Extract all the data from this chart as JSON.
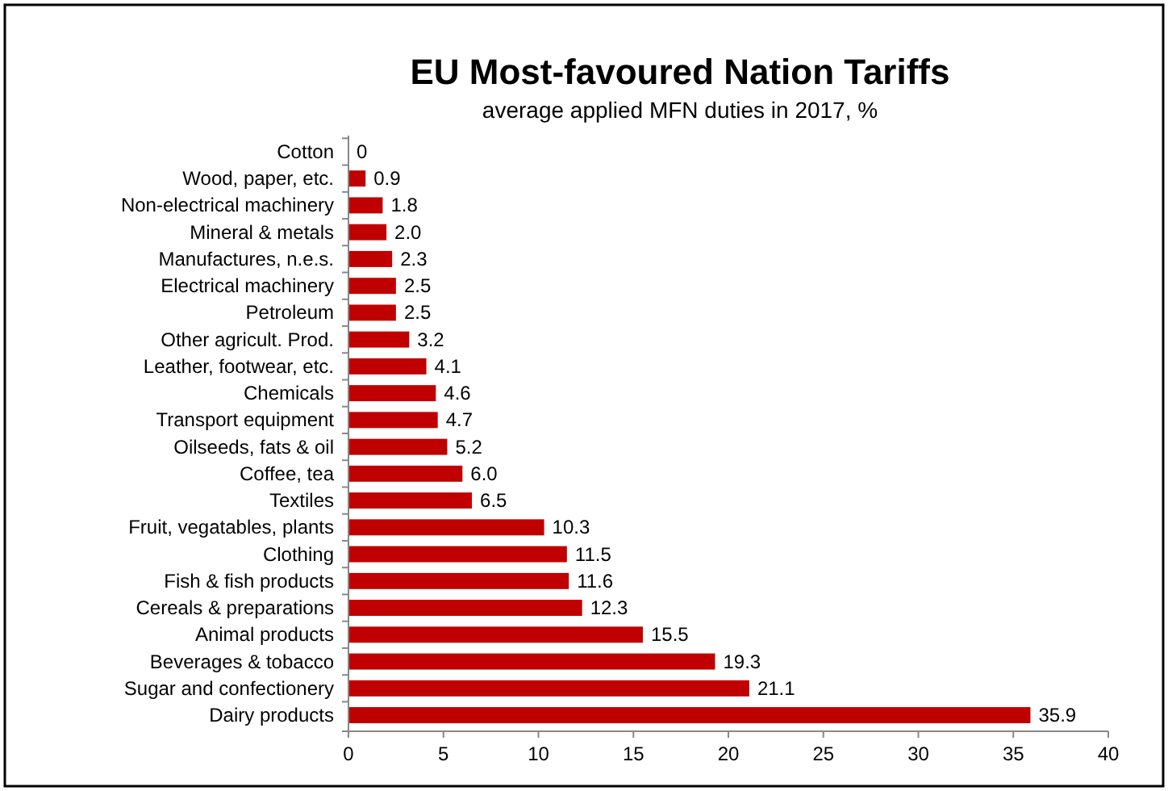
{
  "chart_data": {
    "type": "bar",
    "orientation": "horizontal",
    "title": "EU Most-favoured Nation Tariffs",
    "subtitle": "average applied MFN duties in 2017, %",
    "categories": [
      "Cotton",
      "Wood, paper, etc.",
      "Non-electrical machinery",
      "Mineral & metals",
      "Manufactures, n.e.s.",
      "Electrical machinery",
      "Petroleum",
      "Other agricult. Prod.",
      "Leather, footwear, etc.",
      "Chemicals",
      "Transport equipment",
      "Oilseeds, fats & oil",
      "Coffee, tea",
      "Textiles",
      "Fruit, vegatables, plants",
      "Clothing",
      "Fish & fish products",
      "Cereals & preparations",
      "Animal products",
      "Beverages & tobacco",
      "Sugar and confectionery",
      "Dairy products"
    ],
    "values": [
      0,
      0.9,
      1.8,
      2.0,
      2.3,
      2.5,
      2.5,
      3.2,
      4.1,
      4.6,
      4.7,
      5.2,
      6.0,
      6.5,
      10.3,
      11.5,
      11.6,
      12.3,
      15.5,
      19.3,
      21.1,
      35.9
    ],
    "value_labels": [
      "0",
      "0.9",
      "1.8",
      "2.0",
      "2.3",
      "2.5",
      "2.5",
      "3.2",
      "4.1",
      "4.6",
      "4.7",
      "5.2",
      "6.0",
      "6.5",
      "10.3",
      "11.5",
      "11.6",
      "12.3",
      "15.5",
      "19.3",
      "21.1",
      "35.9"
    ],
    "color": "#c00000",
    "xlim": [
      0,
      40
    ],
    "xticks": [
      0,
      5,
      10,
      15,
      20,
      25,
      30,
      35,
      40
    ],
    "grid": false
  }
}
